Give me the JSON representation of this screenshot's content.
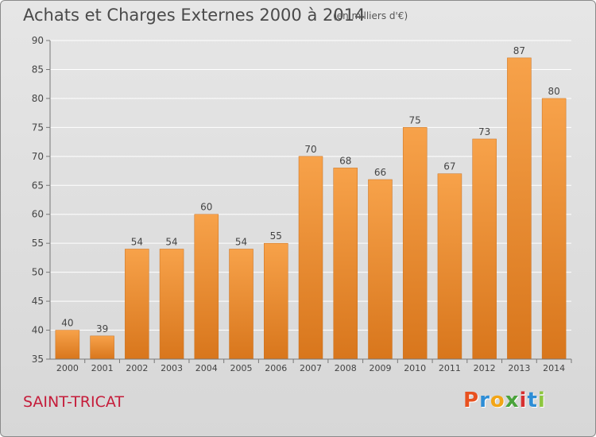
{
  "header": {
    "title": "Achats et Charges Externes 2000 à 2014",
    "subtitle": "(en milliers d'€)"
  },
  "footer": {
    "location": "SAINT-TRICAT",
    "logo_text": "Proxiti",
    "logo_colors": [
      "#e8511f",
      "#2d8dd6",
      "#f2a516",
      "#4aa33b",
      "#d62f2f",
      "#2d8dd6",
      "#8dc63f"
    ]
  },
  "colors": {
    "bar_light": "#f7a24a",
    "bar_dark": "#d8761c",
    "grid": "#ffffff",
    "axis_text": "#444444"
  },
  "chart_data": {
    "type": "bar",
    "title": "Achats et Charges Externes 2000 à 2014",
    "subtitle": "(en milliers d'€)",
    "categories": [
      "2000",
      "2001",
      "2002",
      "2003",
      "2004",
      "2005",
      "2006",
      "2007",
      "2008",
      "2009",
      "2010",
      "2011",
      "2012",
      "2013",
      "2014"
    ],
    "values": [
      40,
      39,
      54,
      54,
      60,
      54,
      55,
      70,
      68,
      66,
      75,
      67,
      73,
      87,
      80
    ],
    "ylim": [
      35,
      90
    ],
    "yticks": [
      35,
      40,
      45,
      50,
      55,
      60,
      65,
      70,
      75,
      80,
      85,
      90
    ],
    "grid": true,
    "data_labels": true
  }
}
